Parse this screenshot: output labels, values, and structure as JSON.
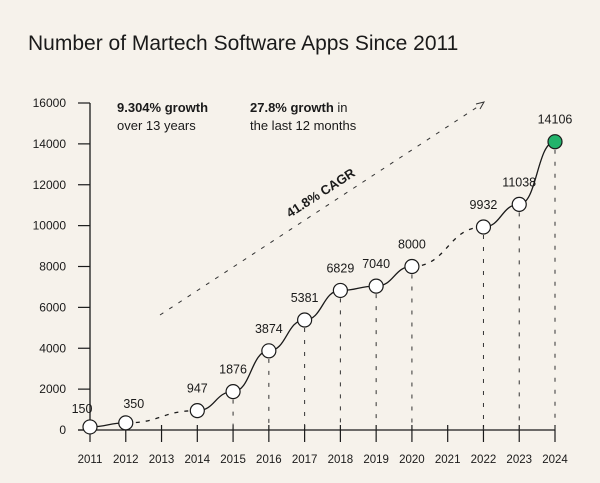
{
  "chart_data": {
    "type": "line",
    "title": "Number of Martech Software Apps Since 2011",
    "xlabel": "",
    "ylabel": "",
    "x_ticks": [
      "2011",
      "2012",
      "2013",
      "2014",
      "2015",
      "2016",
      "2017",
      "2018",
      "2019",
      "2020",
      "2021",
      "2022",
      "2023",
      "2024"
    ],
    "y_ticks": [
      0,
      2000,
      4000,
      6000,
      8000,
      10000,
      12000,
      14000,
      16000
    ],
    "ylim": [
      0,
      16000
    ],
    "grid": false,
    "points": [
      {
        "x": 2011,
        "y": 150,
        "label": "150"
      },
      {
        "x": 2012,
        "y": 350,
        "label": "350"
      },
      {
        "x": 2014,
        "y": 947,
        "label": "947"
      },
      {
        "x": 2015,
        "y": 1876,
        "label": "1876"
      },
      {
        "x": 2016,
        "y": 3874,
        "label": "3874"
      },
      {
        "x": 2017,
        "y": 5381,
        "label": "5381"
      },
      {
        "x": 2018,
        "y": 6829,
        "label": "6829"
      },
      {
        "x": 2019,
        "y": 7040,
        "label": "7040"
      },
      {
        "x": 2020,
        "y": 8000,
        "label": "8000"
      },
      {
        "x": 2022,
        "y": 9932,
        "label": "9932"
      },
      {
        "x": 2023,
        "y": 11038,
        "label": "11038"
      },
      {
        "x": 2024,
        "y": 14106,
        "label": "14106"
      }
    ],
    "annotations": {
      "growth_total_bold": "9.304% growth",
      "growth_total_rest": "over 13 years",
      "growth_recent_bold": "27.8% growth",
      "growth_recent_in": " in",
      "growth_recent_rest": "the last 12 months",
      "cagr": "41.8% CAGR"
    },
    "colors": {
      "line": "#1a1a1a",
      "point_fill": "#ffffff",
      "highlight": "#22b36b",
      "background": "#f6f2eb"
    }
  }
}
